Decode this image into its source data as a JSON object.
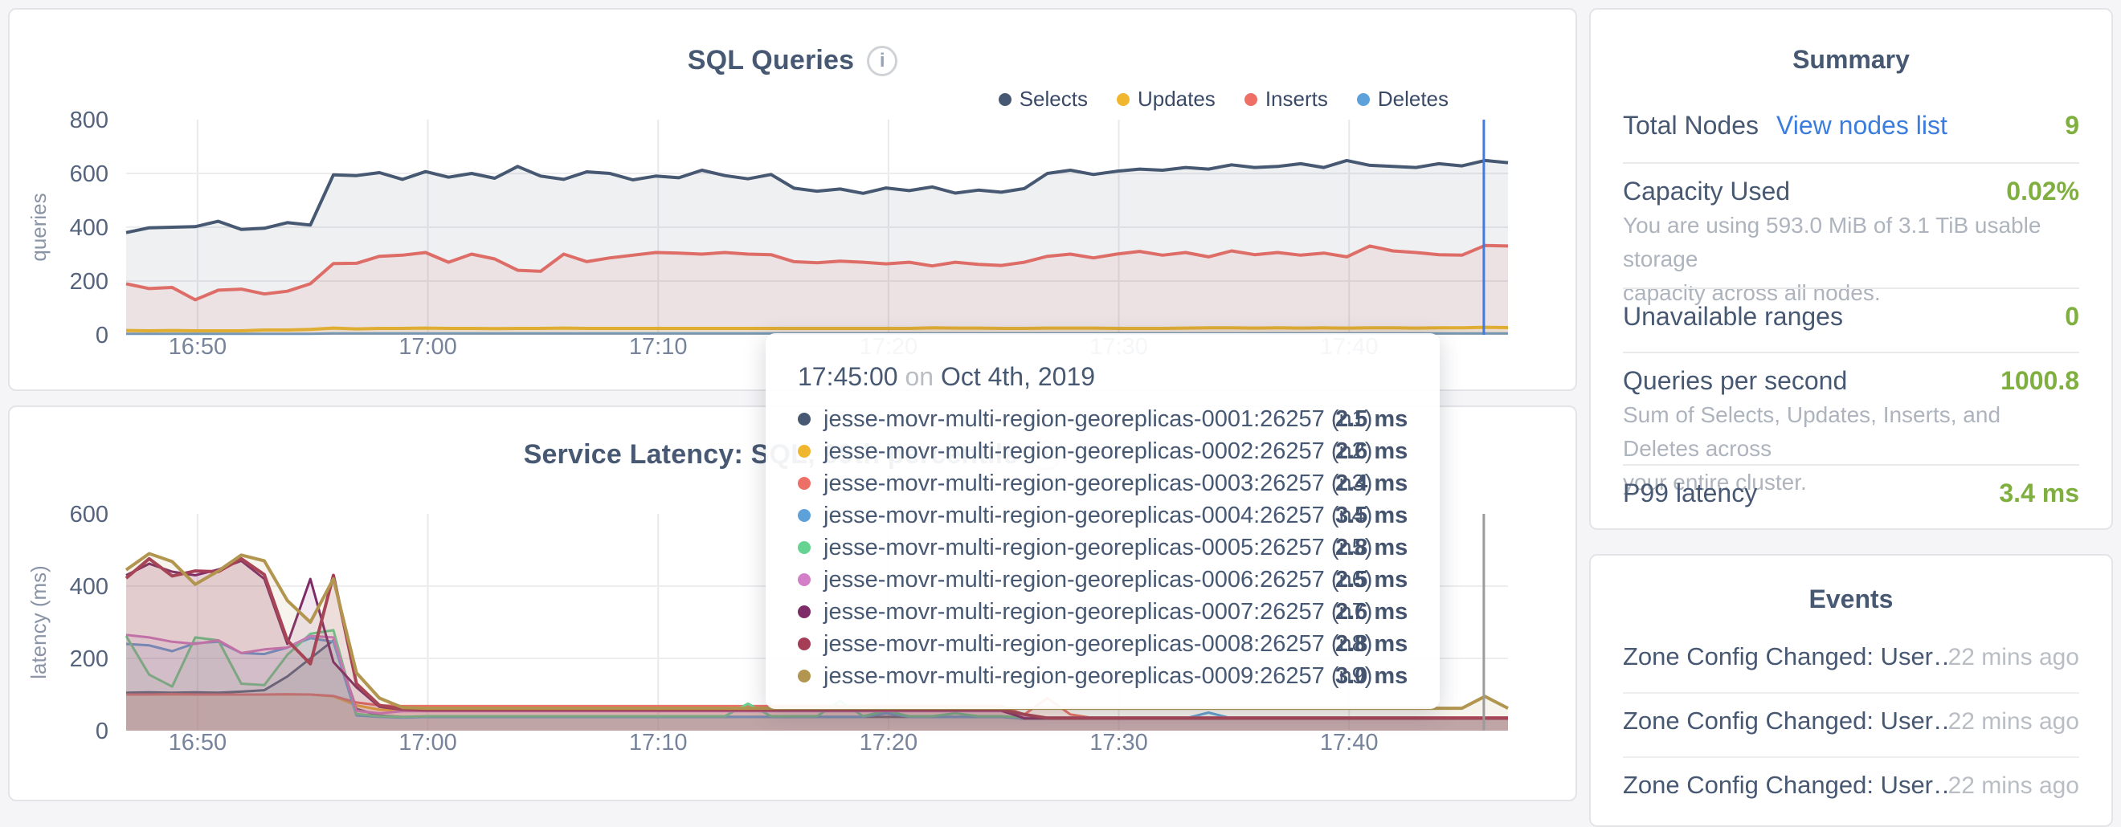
{
  "colors": {
    "accent_green": "#7FAF3F",
    "link_blue": "#3B7DDD",
    "text_slate": "#475872",
    "axis_gray": "#76839B",
    "crosshair_blue": "#3E7BE6",
    "crosshair_gray": "#9b9b9b"
  },
  "chart_data": [
    {
      "type": "area",
      "title": "SQL Queries",
      "info_icon": "i",
      "ylabel": "queries",
      "xlabel": "",
      "ylim": [
        0,
        800
      ],
      "yticks": [
        0,
        200,
        400,
        600,
        800
      ],
      "x_range_minutes": 60,
      "xticks": [
        {
          "label": "16:50",
          "min": 3.1
        },
        {
          "label": "17:00",
          "min": 13.1
        },
        {
          "label": "17:10",
          "min": 23.1
        },
        {
          "label": "17:20",
          "min": 33.1
        },
        {
          "label": "17:30",
          "min": 43.1
        },
        {
          "label": "17:40",
          "min": 53.1
        }
      ],
      "grid": true,
      "legend_position": "top-right",
      "crosshair_min": 58.95,
      "crosshair_color": "#3E7BE6",
      "draw_reversed": true,
      "series": [
        {
          "name": "Selects",
          "color": "#475872",
          "fill_opacity": 0.09,
          "width": 4,
          "values": [
            380,
            398,
            400,
            402,
            422,
            392,
            396,
            417,
            408,
            595,
            592,
            603,
            578,
            607,
            586,
            600,
            582,
            626,
            590,
            578,
            606,
            600,
            576,
            590,
            584,
            612,
            592,
            580,
            596,
            545,
            534,
            542,
            526,
            546,
            536,
            550,
            527,
            538,
            530,
            544,
            600,
            612,
            596,
            608,
            616,
            612,
            622,
            616,
            632,
            622,
            626,
            636,
            622,
            648,
            630,
            626,
            622,
            636,
            628,
            648,
            640
          ]
        },
        {
          "name": "Updates",
          "color": "#F0B62E",
          "fill_opacity": 0.12,
          "width": 4,
          "values": [
            16,
            15,
            16,
            15,
            15,
            15,
            18,
            18,
            20,
            25,
            22,
            24,
            24,
            25,
            24,
            24,
            23,
            24,
            24,
            25,
            24,
            24,
            24,
            24,
            24,
            24,
            24,
            24,
            24,
            24,
            24,
            24,
            24,
            24,
            24,
            26,
            25,
            25,
            24,
            24,
            25,
            25,
            25,
            24,
            24,
            24,
            25,
            26,
            26,
            25,
            26,
            25,
            26,
            25,
            26,
            26,
            25,
            26,
            26,
            28,
            27
          ]
        },
        {
          "name": "Inserts",
          "color": "#ED6F66",
          "fill_opacity": 0.1,
          "width": 4,
          "values": [
            190,
            172,
            176,
            130,
            166,
            170,
            152,
            162,
            190,
            265,
            266,
            292,
            296,
            306,
            270,
            300,
            282,
            240,
            236,
            300,
            272,
            286,
            296,
            306,
            304,
            300,
            306,
            300,
            298,
            272,
            268,
            274,
            270,
            264,
            270,
            256,
            270,
            262,
            258,
            270,
            292,
            300,
            286,
            300,
            310,
            296,
            306,
            290,
            312,
            298,
            306,
            296,
            304,
            290,
            330,
            312,
            306,
            298,
            296,
            332,
            330
          ]
        },
        {
          "name": "Deletes",
          "color": "#5DA1DB",
          "fill_opacity": 0.25,
          "width": 3,
          "values": [
            4,
            4,
            4,
            4,
            4,
            4,
            4,
            4,
            4,
            5,
            5,
            5,
            5,
            5,
            5,
            5,
            5,
            5,
            5,
            5,
            5,
            5,
            5,
            5,
            5,
            5,
            5,
            5,
            5,
            5,
            5,
            5,
            5,
            5,
            5,
            5,
            5,
            5,
            5,
            5,
            5,
            5,
            5,
            5,
            5,
            5,
            5,
            5,
            5,
            5,
            5,
            5,
            5,
            5,
            5,
            5,
            5,
            5,
            5,
            5,
            5
          ]
        }
      ]
    },
    {
      "type": "area",
      "title": "Service Latency: SQL, 99th percentile",
      "info_icon": "i",
      "ylabel": "latency (ms)",
      "xlabel": "",
      "ylim": [
        0,
        600
      ],
      "yticks": [
        0,
        200,
        400,
        600
      ],
      "x_range_minutes": 60,
      "xticks": [
        {
          "label": "16:50",
          "min": 3.1
        },
        {
          "label": "17:00",
          "min": 13.1
        },
        {
          "label": "17:10",
          "min": 23.1
        },
        {
          "label": "17:20",
          "min": 33.1
        },
        {
          "label": "17:30",
          "min": 43.1
        },
        {
          "label": "17:40",
          "min": 53.1
        }
      ],
      "grid": true,
      "legend_position": "hidden-under-tooltip",
      "crosshair_min": 58.95,
      "crosshair_color": "#9b9b9b",
      "draw_reversed": false,
      "series": [
        {
          "name": "jesse-movr-multi-region-georeplicas-0001:26257 (n1)",
          "color": "#475872",
          "fill_opacity": 0.1,
          "width": 3,
          "values": [
            105,
            106,
            105,
            106,
            105,
            108,
            112,
            150,
            200,
            250,
            60,
            42,
            38,
            38,
            38,
            38,
            38,
            38,
            38,
            38,
            38,
            38,
            38,
            38,
            38,
            38,
            38,
            38,
            38,
            38,
            38,
            38,
            38,
            38,
            38,
            38,
            38,
            38,
            38,
            33,
            33,
            33,
            33,
            33,
            33,
            33,
            33,
            33,
            33,
            33,
            33,
            33,
            33,
            33,
            33,
            33,
            33,
            33,
            33,
            33,
            33
          ]
        },
        {
          "name": "jesse-movr-multi-region-georeplicas-0002:26257 (n2)",
          "color": "#F0B62E",
          "fill_opacity": 0.1,
          "width": 3,
          "values": [
            100,
            100,
            100,
            100,
            100,
            100,
            100,
            100,
            100,
            95,
            70,
            58,
            56,
            56,
            56,
            56,
            56,
            56,
            56,
            56,
            56,
            56,
            56,
            56,
            56,
            56,
            56,
            56,
            56,
            56,
            56,
            56,
            56,
            56,
            56,
            56,
            56,
            56,
            56,
            34,
            34,
            34,
            34,
            34,
            34,
            34,
            34,
            34,
            34,
            34,
            34,
            34,
            34,
            34,
            34,
            34,
            34,
            34,
            34,
            34,
            34
          ]
        },
        {
          "name": "jesse-movr-multi-region-georeplicas-0003:26257 (n3)",
          "color": "#ED6F66",
          "fill_opacity": 0.12,
          "width": 3,
          "values": [
            100,
            100,
            101,
            100,
            100,
            100,
            100,
            101,
            100,
            96,
            78,
            70,
            68,
            68,
            68,
            68,
            68,
            68,
            68,
            68,
            68,
            68,
            68,
            68,
            68,
            68,
            68,
            68,
            68,
            68,
            68,
            68,
            68,
            68,
            68,
            68,
            68,
            68,
            68,
            45,
            90,
            45,
            35,
            35,
            35,
            35,
            35,
            35,
            35,
            35,
            35,
            35,
            35,
            35,
            35,
            35,
            35,
            35,
            35,
            35,
            35
          ]
        },
        {
          "name": "jesse-movr-multi-region-georeplicas-0004:26257 (n4)",
          "color": "#5DA1DB",
          "fill_opacity": 0.1,
          "width": 3,
          "values": [
            240,
            236,
            220,
            242,
            246,
            215,
            212,
            230,
            256,
            246,
            42,
            38,
            36,
            38,
            38,
            38,
            38,
            38,
            38,
            38,
            38,
            38,
            38,
            38,
            38,
            38,
            38,
            38,
            38,
            38,
            38,
            38,
            38,
            48,
            38,
            38,
            38,
            38,
            38,
            34,
            34,
            34,
            34,
            34,
            34,
            34,
            34,
            50,
            34,
            34,
            34,
            34,
            34,
            34,
            34,
            34,
            34,
            34,
            34,
            34,
            34
          ]
        },
        {
          "name": "jesse-movr-multi-region-georeplicas-0005:26257 (n5)",
          "color": "#67D391",
          "fill_opacity": 0.1,
          "width": 3,
          "values": [
            262,
            155,
            122,
            258,
            250,
            130,
            126,
            210,
            268,
            278,
            46,
            40,
            38,
            40,
            40,
            40,
            40,
            40,
            40,
            40,
            40,
            40,
            40,
            40,
            40,
            40,
            40,
            75,
            40,
            40,
            40,
            82,
            40,
            55,
            40,
            40,
            48,
            40,
            40,
            36,
            36,
            36,
            36,
            36,
            36,
            36,
            36,
            36,
            36,
            36,
            36,
            36,
            36,
            36,
            36,
            36,
            36,
            36,
            36,
            36,
            36
          ]
        },
        {
          "name": "jesse-movr-multi-region-georeplicas-0006:26257 (n6)",
          "color": "#D27FC8",
          "fill_opacity": 0.1,
          "width": 3,
          "values": [
            265,
            258,
            246,
            240,
            250,
            215,
            225,
            230,
            262,
            258,
            55,
            48,
            54,
            54,
            54,
            54,
            54,
            54,
            54,
            54,
            54,
            54,
            54,
            54,
            54,
            54,
            54,
            54,
            54,
            54,
            54,
            54,
            54,
            54,
            54,
            54,
            54,
            54,
            54,
            36,
            36,
            36,
            36,
            36,
            36,
            36,
            36,
            36,
            36,
            36,
            36,
            36,
            36,
            36,
            36,
            36,
            36,
            36,
            36,
            36,
            36
          ]
        },
        {
          "name": "jesse-movr-multi-region-georeplicas-0007:26257 (n7)",
          "color": "#7D2C68",
          "fill_opacity": 0.1,
          "width": 3,
          "values": [
            430,
            462,
            440,
            430,
            446,
            470,
            420,
            240,
            420,
            190,
            120,
            66,
            58,
            56,
            56,
            56,
            56,
            56,
            56,
            56,
            56,
            56,
            56,
            56,
            56,
            56,
            56,
            56,
            56,
            56,
            56,
            56,
            56,
            56,
            56,
            56,
            56,
            56,
            56,
            34,
            34,
            34,
            34,
            34,
            34,
            34,
            34,
            34,
            34,
            34,
            34,
            34,
            34,
            34,
            34,
            34,
            34,
            34,
            34,
            34,
            34
          ]
        },
        {
          "name": "jesse-movr-multi-region-georeplicas-0008:26257 (n8)",
          "color": "#A63D57",
          "fill_opacity": 0.12,
          "width": 4,
          "values": [
            422,
            476,
            428,
            442,
            440,
            476,
            432,
            250,
            185,
            430,
            130,
            70,
            60,
            58,
            58,
            58,
            58,
            58,
            58,
            58,
            58,
            58,
            58,
            58,
            58,
            58,
            58,
            58,
            58,
            58,
            58,
            58,
            58,
            58,
            58,
            58,
            58,
            58,
            58,
            45,
            35,
            35,
            35,
            35,
            35,
            35,
            35,
            35,
            35,
            35,
            35,
            35,
            35,
            35,
            35,
            35,
            35,
            35,
            35,
            35,
            35
          ]
        },
        {
          "name": "jesse-movr-multi-region-georeplicas-0009:26257 (n9)",
          "color": "#B2954E",
          "fill_opacity": 0.1,
          "width": 4,
          "values": [
            445,
            490,
            468,
            405,
            442,
            486,
            470,
            360,
            300,
            420,
            160,
            90,
            64,
            62,
            62,
            62,
            62,
            62,
            62,
            62,
            62,
            62,
            62,
            62,
            62,
            62,
            62,
            62,
            62,
            62,
            62,
            62,
            62,
            62,
            62,
            62,
            62,
            62,
            62,
            62,
            62,
            62,
            62,
            62,
            62,
            62,
            62,
            62,
            62,
            62,
            62,
            62,
            62,
            62,
            62,
            62,
            62,
            62,
            62,
            95,
            62
          ]
        }
      ]
    }
  ],
  "tooltip": {
    "time": "17:45:00",
    "on_word": "on",
    "date": "Oct 4th, 2019",
    "rows": [
      {
        "name": "jesse-movr-multi-region-georeplicas-0001:26257 (n1)",
        "value": "2.5 ms",
        "color": "#475872"
      },
      {
        "name": "jesse-movr-multi-region-georeplicas-0002:26257 (n2)",
        "value": "2.6 ms",
        "color": "#F0B62E"
      },
      {
        "name": "jesse-movr-multi-region-georeplicas-0003:26257 (n3)",
        "value": "2.4 ms",
        "color": "#ED6F66"
      },
      {
        "name": "jesse-movr-multi-region-georeplicas-0004:26257 (n4)",
        "value": "3.5 ms",
        "color": "#5DA1DB"
      },
      {
        "name": "jesse-movr-multi-region-georeplicas-0005:26257 (n5)",
        "value": "2.8 ms",
        "color": "#67D391"
      },
      {
        "name": "jesse-movr-multi-region-georeplicas-0006:26257 (n6)",
        "value": "2.5 ms",
        "color": "#D27FC8"
      },
      {
        "name": "jesse-movr-multi-region-georeplicas-0007:26257 (n7)",
        "value": "2.6 ms",
        "color": "#7D2C68"
      },
      {
        "name": "jesse-movr-multi-region-georeplicas-0008:26257 (n8)",
        "value": "2.8 ms",
        "color": "#A63D57"
      },
      {
        "name": "jesse-movr-multi-region-georeplicas-0009:26257 (n9)",
        "value": "3.0 ms",
        "color": "#B2954E"
      }
    ]
  },
  "summary": {
    "title": "Summary",
    "total_nodes_label": "Total Nodes",
    "view_nodes_link": "View nodes list",
    "total_nodes_value": "9",
    "capacity_label": "Capacity Used",
    "capacity_value": "0.02%",
    "capacity_note_line1": "You are using 593.0 MiB of 3.1 TiB usable storage",
    "capacity_note_line2": "capacity across all nodes.",
    "unavailable_label": "Unavailable ranges",
    "unavailable_value": "0",
    "qps_label": "Queries per second",
    "qps_value": "1000.8",
    "qps_note_line1": "Sum of Selects, Updates, Inserts, and Deletes across",
    "qps_note_line2": "your entire cluster.",
    "p99_label": "P99 latency",
    "p99_value": "3.4 ms"
  },
  "events": {
    "title": "Events",
    "rows": [
      {
        "label": "Zone Config Changed: User…",
        "time": "22 mins ago"
      },
      {
        "label": "Zone Config Changed: User…",
        "time": "22 mins ago"
      },
      {
        "label": "Zone Config Changed: User…",
        "time": "22 mins ago"
      }
    ]
  }
}
